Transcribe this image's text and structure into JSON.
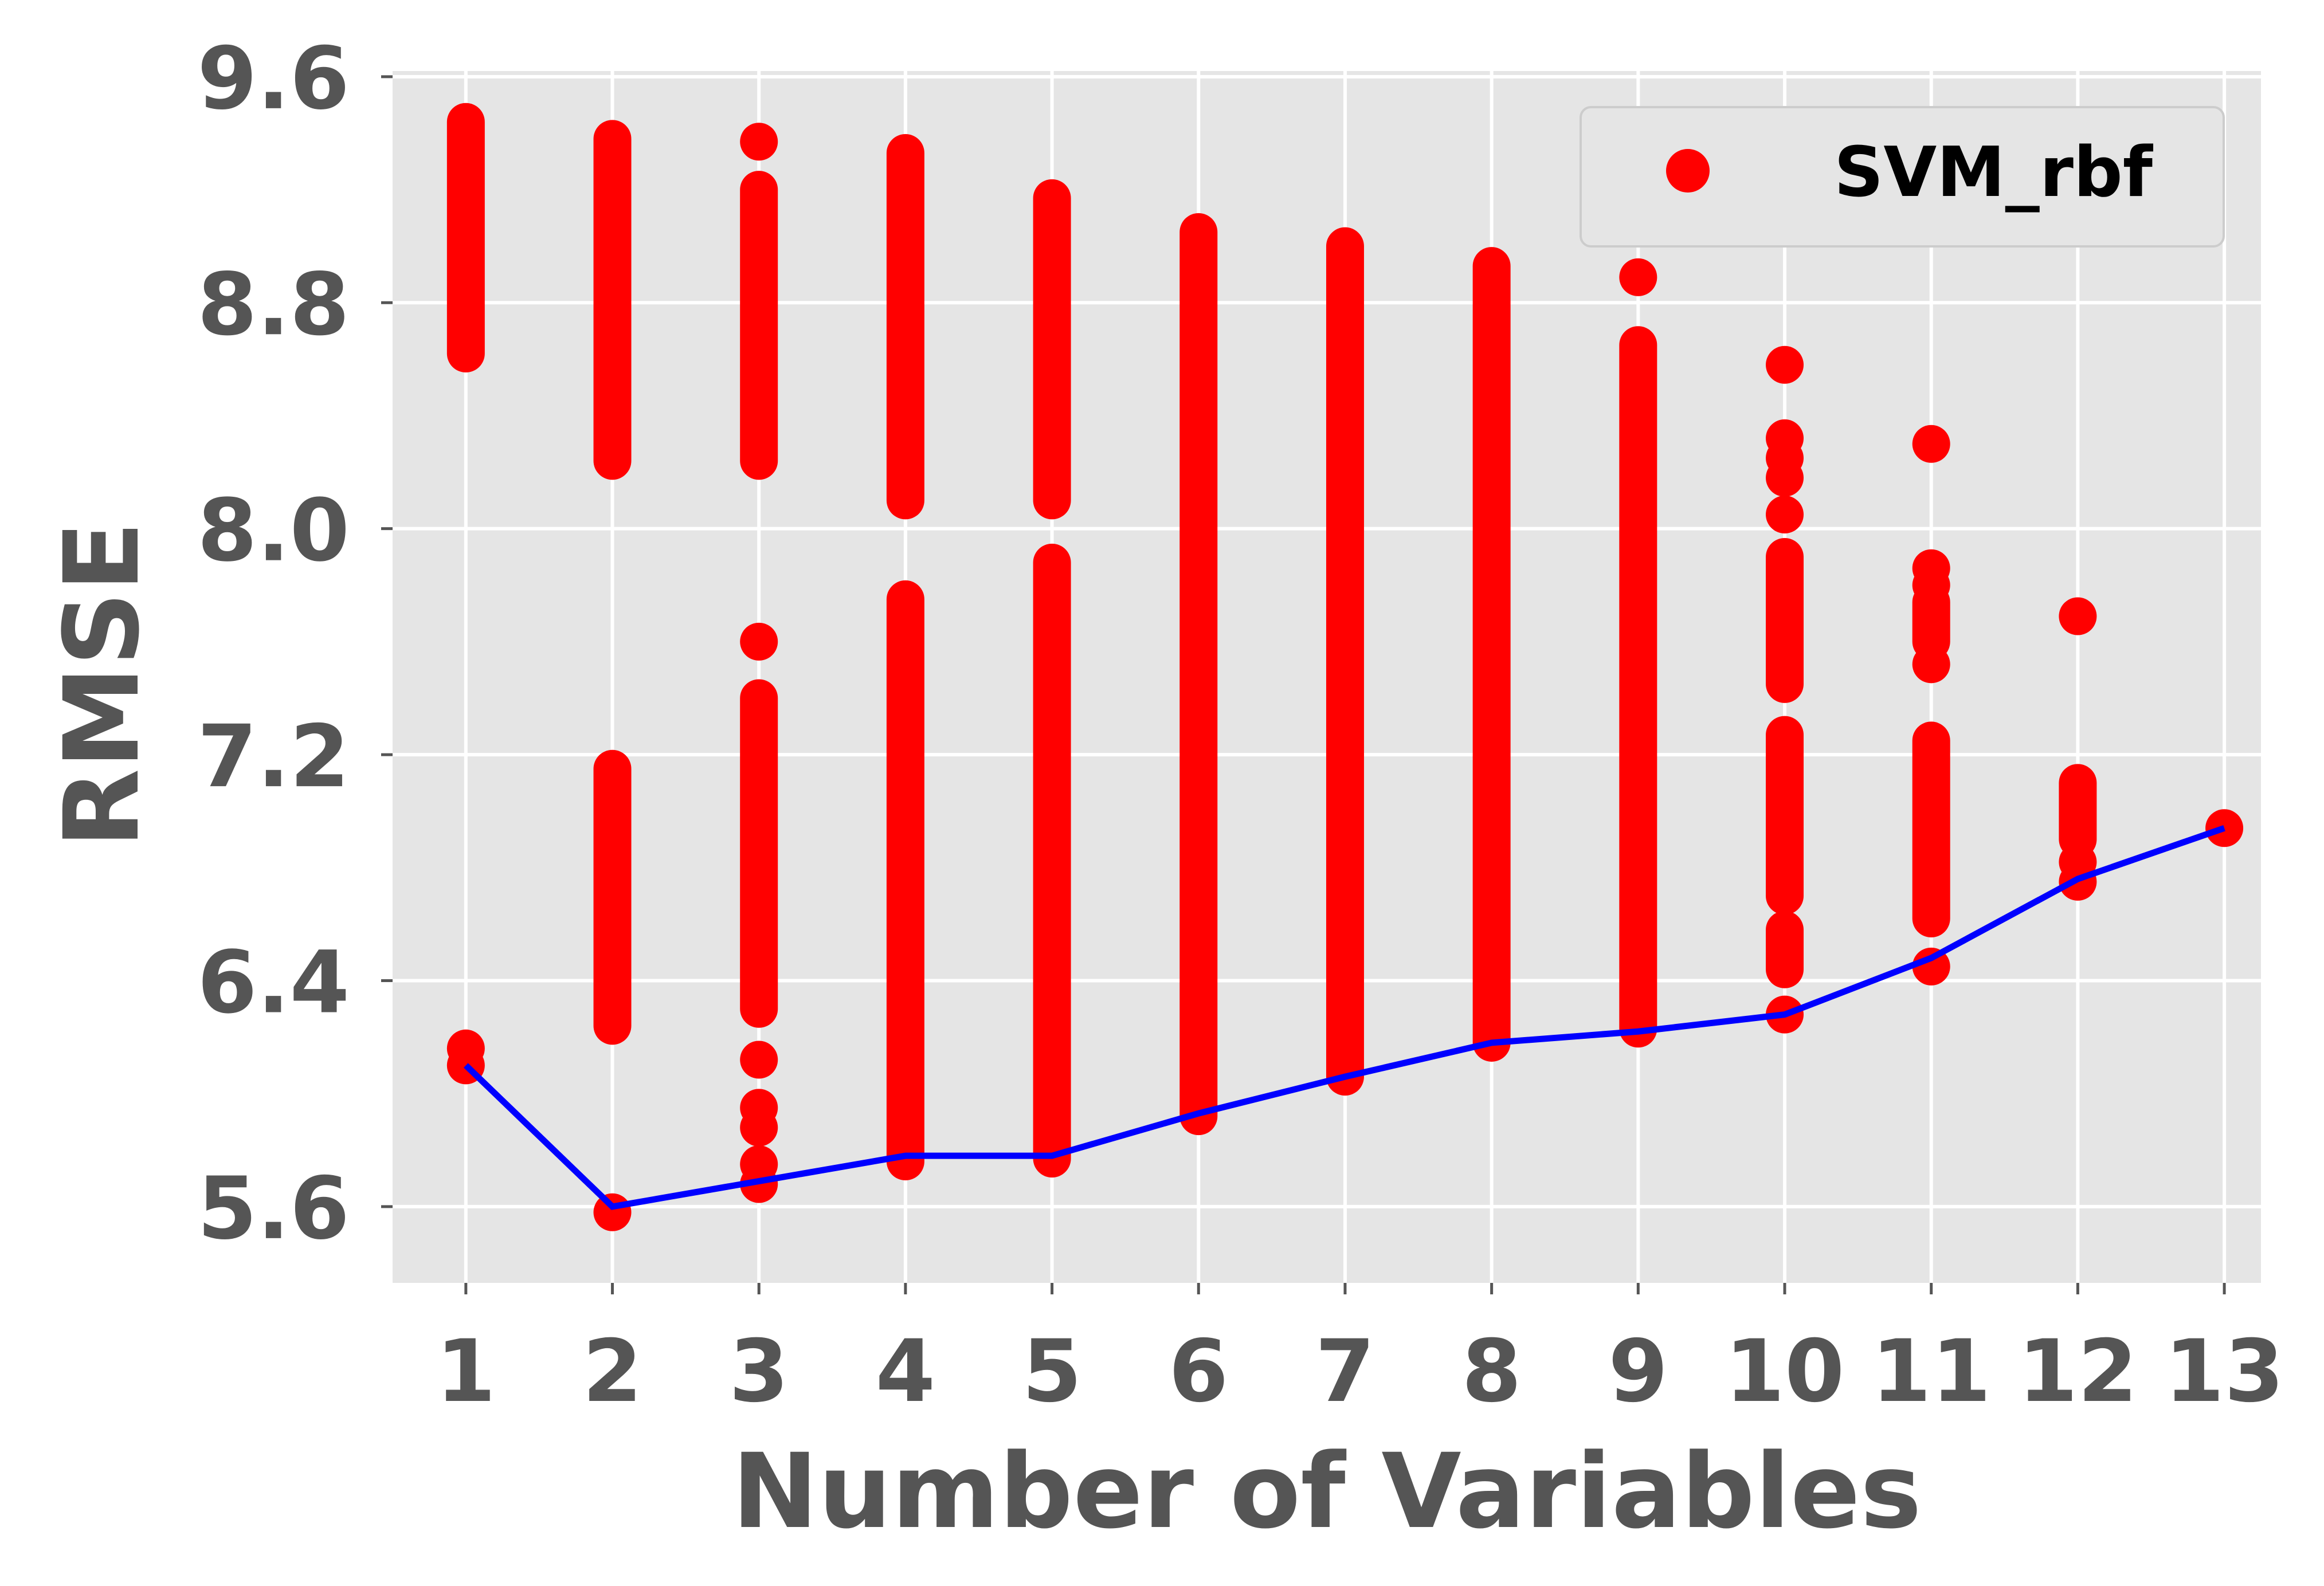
{
  "chart_data": {
    "type": "scatter",
    "title": "",
    "xlabel": "Number of Variables",
    "ylabel": "RMSE",
    "x_ticks": [
      "1",
      "2",
      "3",
      "4",
      "5",
      "6",
      "7",
      "8",
      "9",
      "10",
      "11",
      "12",
      "13"
    ],
    "y_ticks": [
      "5.6",
      "6.4",
      "7.2",
      "8.0",
      "8.8",
      "9.6"
    ],
    "xlim": [
      0.5,
      13.25
    ],
    "ylim": [
      5.33,
      9.62
    ],
    "grid": true,
    "legend_position": "top-right",
    "colors": {
      "plot_background": "#e5e5e5",
      "grid": "#ffffff",
      "scatter": "#ff0000",
      "line": "#0000ff",
      "tick_text": "#555555"
    },
    "series": [
      {
        "name": "SVM_rbf",
        "kind": "scatter",
        "color": "#ff0000",
        "ranges": [
          {
            "x": 1,
            "segments": [
              [
                8.62,
                9.44
              ]
            ],
            "isolated": [
              6.1,
              6.16
            ]
          },
          {
            "x": 2,
            "segments": [
              [
                8.24,
                9.38
              ],
              [
                6.24,
                7.15
              ]
            ],
            "isolated": [
              5.58
            ]
          },
          {
            "x": 3,
            "segments": [
              [
                8.24,
                9.2
              ],
              [
                6.3,
                7.4
              ]
            ],
            "isolated": [
              9.37,
              7.6,
              6.12,
              5.95,
              5.88,
              5.75,
              5.68
            ]
          },
          {
            "x": 4,
            "segments": [
              [
                8.1,
                9.33
              ],
              [
                5.76,
                7.75
              ]
            ],
            "isolated": []
          },
          {
            "x": 5,
            "segments": [
              [
                8.1,
                9.17
              ],
              [
                5.77,
                7.88
              ]
            ],
            "isolated": []
          },
          {
            "x": 6,
            "segments": [
              [
                5.92,
                9.05
              ]
            ],
            "isolated": []
          },
          {
            "x": 7,
            "segments": [
              [
                6.06,
                9.0
              ]
            ],
            "isolated": []
          },
          {
            "x": 8,
            "segments": [
              [
                6.18,
                8.93
              ]
            ],
            "isolated": []
          },
          {
            "x": 9,
            "segments": [
              [
                6.23,
                8.65
              ]
            ],
            "isolated": [
              8.89
            ]
          },
          {
            "x": 10,
            "segments": [
              [
                6.44,
                6.58
              ],
              [
                6.7,
                7.27
              ],
              [
                7.45,
                7.9
              ]
            ],
            "isolated": [
              8.58,
              8.32,
              8.25,
              8.18,
              8.05,
              6.28
            ]
          },
          {
            "x": 11,
            "segments": [
              [
                6.62,
                7.25
              ],
              [
                7.6,
                7.74
              ]
            ],
            "isolated": [
              8.3,
              7.86,
              7.8,
              7.52,
              6.45
            ]
          },
          {
            "x": 12,
            "segments": [
              [
                6.9,
                7.1
              ]
            ],
            "isolated": [
              7.69,
              6.75,
              6.82
            ]
          },
          {
            "x": 13,
            "segments": [],
            "isolated": [
              6.94
            ]
          }
        ]
      },
      {
        "name": "",
        "kind": "line",
        "color": "#0000ff",
        "x": [
          1,
          2,
          3,
          4,
          5,
          6,
          7,
          8,
          9,
          10,
          11,
          12,
          13
        ],
        "y": [
          6.1,
          5.6,
          5.69,
          5.78,
          5.78,
          5.93,
          6.06,
          6.18,
          6.22,
          6.28,
          6.48,
          6.76,
          6.94
        ]
      }
    ]
  }
}
